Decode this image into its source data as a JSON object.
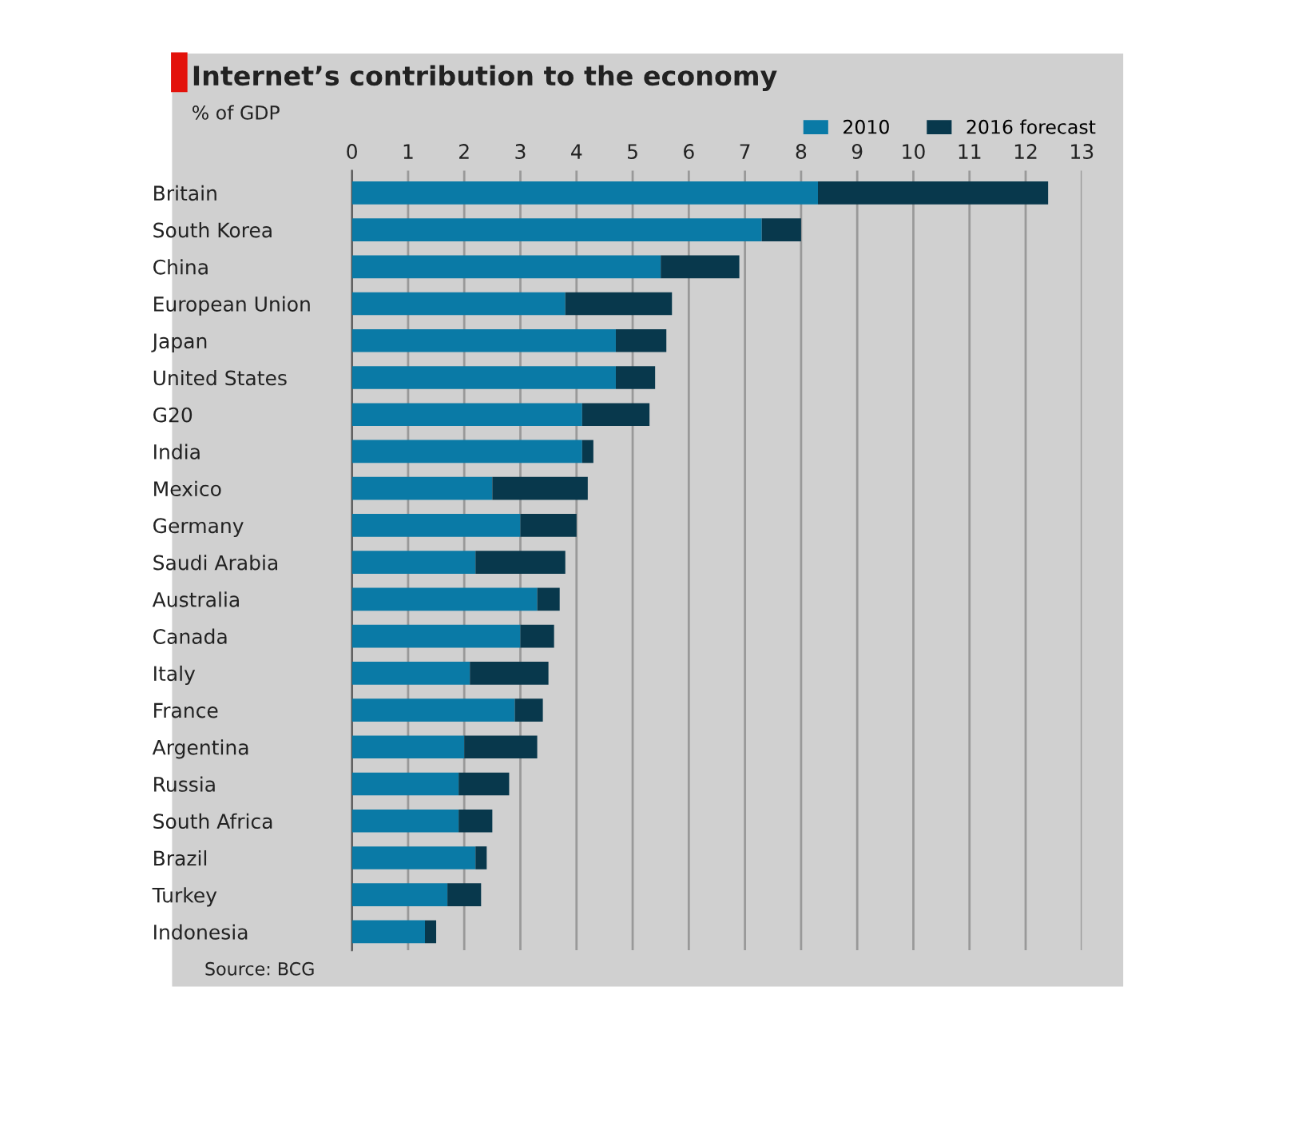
{
  "chart_data": {
    "type": "bar",
    "orientation": "horizontal",
    "stacked": true,
    "title": "Internet’s contribution to the economy",
    "subtitle": "% of GDP",
    "categories": [
      "Britain",
      "South Korea",
      "China",
      "European Union",
      "Japan",
      "United States",
      "G20",
      "India",
      "Mexico",
      "Germany",
      "Saudi Arabia",
      "Australia",
      "Canada",
      "Italy",
      "France",
      "Argentina",
      "Russia",
      "South Africa",
      "Brazil",
      "Turkey",
      "Indonesia"
    ],
    "series": [
      {
        "name": "2010",
        "color": "#0a7aa6",
        "values": [
          8.3,
          7.3,
          5.5,
          3.8,
          4.7,
          4.7,
          4.1,
          4.1,
          2.5,
          3.0,
          2.2,
          3.3,
          3.0,
          2.1,
          2.9,
          2.0,
          1.9,
          1.9,
          2.2,
          1.7,
          1.3
        ]
      },
      {
        "name": "2016 forecast",
        "color": "#08384c",
        "values": [
          4.1,
          0.7,
          1.4,
          1.9,
          0.9,
          0.7,
          1.2,
          0.2,
          1.7,
          1.0,
          1.6,
          0.4,
          0.6,
          1.4,
          0.5,
          1.3,
          0.9,
          0.6,
          0.2,
          0.6,
          0.2
        ]
      }
    ],
    "xlim": [
      0,
      13
    ],
    "xticks": [
      0,
      1,
      2,
      3,
      4,
      5,
      6,
      7,
      8,
      9,
      10,
      11,
      12,
      13
    ],
    "grid": "x",
    "legend": "top right",
    "annotations": [
      "Source: BCG"
    ]
  }
}
